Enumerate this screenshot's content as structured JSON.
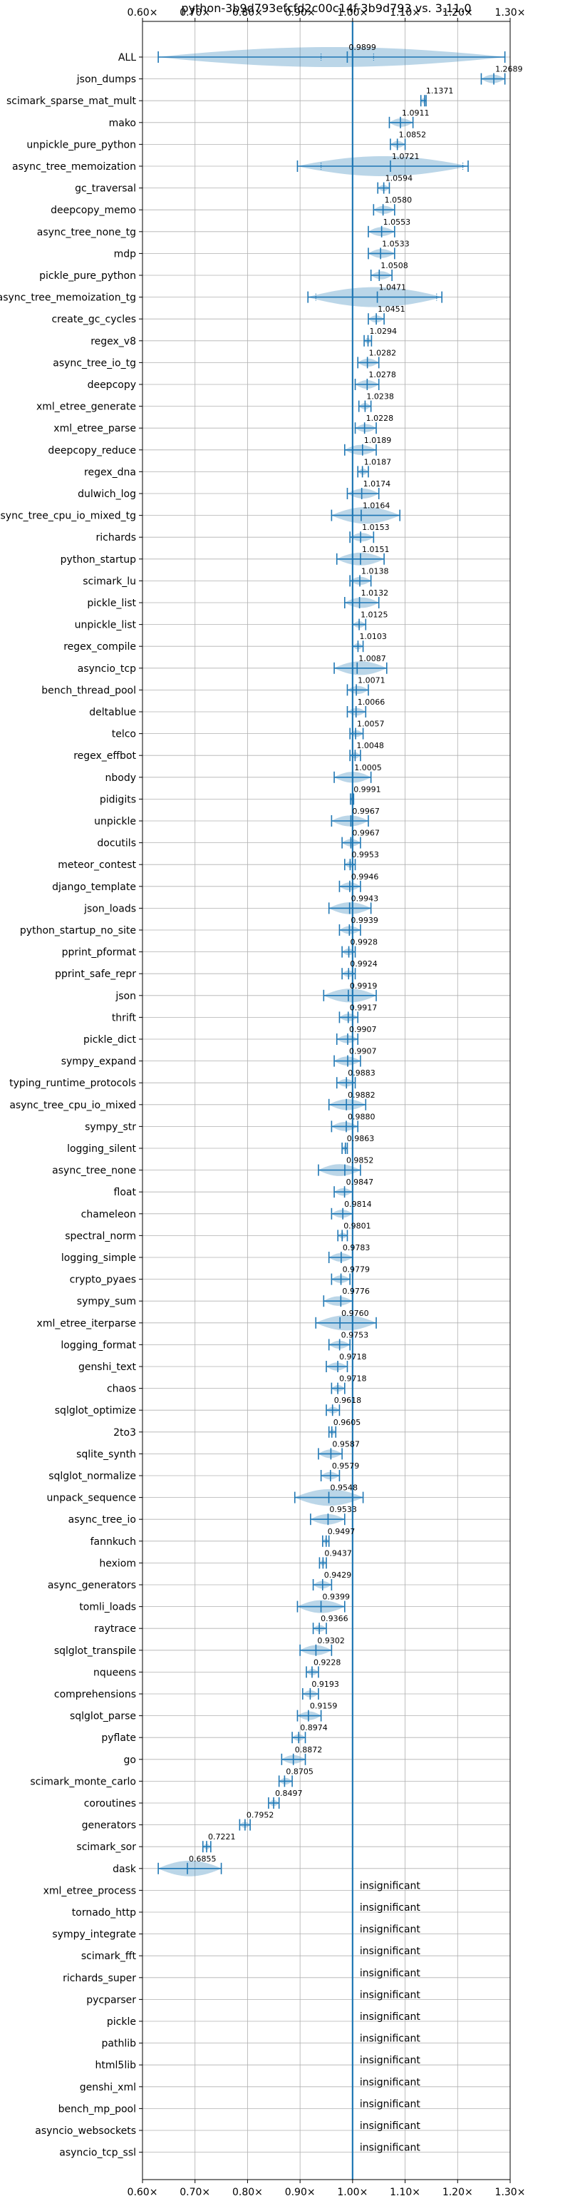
{
  "chart_data": {
    "type": "violin",
    "title": "python-3b9d793efcfd2c00c14f-3b9d793 vs. 3.11.0",
    "orientation": "horizontal",
    "xlabel": "",
    "ylabel": "",
    "xlim": [
      0.6,
      1.3
    ],
    "x_ticks": [
      0.6,
      0.7,
      0.8,
      0.9,
      1.0,
      1.1,
      1.2,
      1.3
    ],
    "x_tick_labels": [
      "0.60×",
      "0.70×",
      "0.80×",
      "0.90×",
      "1.00×",
      "1.10×",
      "1.20×",
      "1.30×"
    ],
    "x_ticks_top_and_bottom": true,
    "grid": true,
    "reference_line": 1.0,
    "insignificant_label": "insignificant",
    "benchmarks": [
      {
        "name": "ALL",
        "median": 0.9899,
        "label": "0.9899",
        "min": 0.63,
        "max": 1.29,
        "violin": [
          0.94,
          1.04
        ]
      },
      {
        "name": "json_dumps",
        "median": 1.2689,
        "label": "1.2689",
        "min": 1.245,
        "max": 1.29
      },
      {
        "name": "scimark_sparse_mat_mult",
        "median": 1.1371,
        "label": "1.1371",
        "min": 1.13,
        "max": 1.14
      },
      {
        "name": "mako",
        "median": 1.0911,
        "label": "1.0911",
        "min": 1.07,
        "max": 1.115
      },
      {
        "name": "unpickle_pure_python",
        "median": 1.0852,
        "label": "1.0852",
        "min": 1.072,
        "max": 1.1
      },
      {
        "name": "async_tree_memoization",
        "median": 1.0721,
        "label": "1.0721",
        "min": 0.895,
        "max": 1.22,
        "violin": [
          0.94,
          1.21
        ]
      },
      {
        "name": "gc_traversal",
        "median": 1.0594,
        "label": "1.0594",
        "min": 1.048,
        "max": 1.07
      },
      {
        "name": "deepcopy_memo",
        "median": 1.058,
        "label": "1.0580",
        "min": 1.04,
        "max": 1.08
      },
      {
        "name": "async_tree_none_tg",
        "median": 1.0553,
        "label": "1.0553",
        "min": 1.03,
        "max": 1.08
      },
      {
        "name": "mdp",
        "median": 1.0533,
        "label": "1.0533",
        "min": 1.03,
        "max": 1.08
      },
      {
        "name": "pickle_pure_python",
        "median": 1.0508,
        "label": "1.0508",
        "min": 1.035,
        "max": 1.075
      },
      {
        "name": "async_tree_memoization_tg",
        "median": 1.0471,
        "label": "1.0471",
        "min": 0.915,
        "max": 1.17,
        "violin": [
          0.93,
          1.16
        ]
      },
      {
        "name": "create_gc_cycles",
        "median": 1.0451,
        "label": "1.0451",
        "min": 1.03,
        "max": 1.06
      },
      {
        "name": "regex_v8",
        "median": 1.0294,
        "label": "1.0294",
        "min": 1.022,
        "max": 1.036
      },
      {
        "name": "async_tree_io_tg",
        "median": 1.0282,
        "label": "1.0282",
        "min": 1.01,
        "max": 1.05
      },
      {
        "name": "deepcopy",
        "median": 1.0278,
        "label": "1.0278",
        "min": 1.005,
        "max": 1.05
      },
      {
        "name": "xml_etree_generate",
        "median": 1.0238,
        "label": "1.0238",
        "min": 1.012,
        "max": 1.035
      },
      {
        "name": "xml_etree_parse",
        "median": 1.0228,
        "label": "1.0228",
        "min": 1.005,
        "max": 1.045
      },
      {
        "name": "deepcopy_reduce",
        "median": 1.0189,
        "label": "1.0189",
        "min": 0.985,
        "max": 1.045
      },
      {
        "name": "regex_dna",
        "median": 1.0187,
        "label": "1.0187",
        "min": 1.01,
        "max": 1.03
      },
      {
        "name": "dulwich_log",
        "median": 1.0174,
        "label": "1.0174",
        "min": 0.99,
        "max": 1.05
      },
      {
        "name": "async_tree_cpu_io_mixed_tg",
        "median": 1.0164,
        "label": "1.0164",
        "min": 0.96,
        "max": 1.09
      },
      {
        "name": "richards",
        "median": 1.0153,
        "label": "1.0153",
        "min": 0.995,
        "max": 1.04
      },
      {
        "name": "python_startup",
        "median": 1.0151,
        "label": "1.0151",
        "min": 0.97,
        "max": 1.06
      },
      {
        "name": "scimark_lu",
        "median": 1.0138,
        "label": "1.0138",
        "min": 0.995,
        "max": 1.035
      },
      {
        "name": "pickle_list",
        "median": 1.0132,
        "label": "1.0132",
        "min": 0.985,
        "max": 1.05
      },
      {
        "name": "unpickle_list",
        "median": 1.0125,
        "label": "1.0125",
        "min": 1.0,
        "max": 1.025
      },
      {
        "name": "regex_compile",
        "median": 1.0103,
        "label": "1.0103",
        "min": 1.0,
        "max": 1.02
      },
      {
        "name": "asyncio_tcp",
        "median": 1.0087,
        "label": "1.0087",
        "min": 0.965,
        "max": 1.065
      },
      {
        "name": "bench_thread_pool",
        "median": 1.0071,
        "label": "1.0071",
        "min": 0.99,
        "max": 1.03
      },
      {
        "name": "deltablue",
        "median": 1.0066,
        "label": "1.0066",
        "min": 0.99,
        "max": 1.025
      },
      {
        "name": "telco",
        "median": 1.0057,
        "label": "1.0057",
        "min": 0.995,
        "max": 1.02
      },
      {
        "name": "regex_effbot",
        "median": 1.0048,
        "label": "1.0048",
        "min": 0.995,
        "max": 1.015
      },
      {
        "name": "nbody",
        "median": 1.0005,
        "label": "1.0005",
        "min": 0.965,
        "max": 1.035
      },
      {
        "name": "pidigits",
        "median": 0.9991,
        "label": "0.9991",
        "min": 0.996,
        "max": 1.002
      },
      {
        "name": "unpickle",
        "median": 0.9967,
        "label": "0.9967",
        "min": 0.96,
        "max": 1.03
      },
      {
        "name": "docutils",
        "median": 0.9967,
        "label": "0.9967",
        "min": 0.98,
        "max": 1.015
      },
      {
        "name": "meteor_contest",
        "median": 0.9953,
        "label": "0.9953",
        "min": 0.985,
        "max": 1.005
      },
      {
        "name": "django_template",
        "median": 0.9946,
        "label": "0.9946",
        "min": 0.975,
        "max": 1.015
      },
      {
        "name": "json_loads",
        "median": 0.9943,
        "label": "0.9943",
        "min": 0.955,
        "max": 1.035
      },
      {
        "name": "python_startup_no_site",
        "median": 0.9939,
        "label": "0.9939",
        "min": 0.975,
        "max": 1.015
      },
      {
        "name": "pprint_pformat",
        "median": 0.9928,
        "label": "0.9928",
        "min": 0.98,
        "max": 1.005
      },
      {
        "name": "pprint_safe_repr",
        "median": 0.9924,
        "label": "0.9924",
        "min": 0.98,
        "max": 1.005
      },
      {
        "name": "json",
        "median": 0.9919,
        "label": "0.9919",
        "min": 0.945,
        "max": 1.045
      },
      {
        "name": "thrift",
        "median": 0.9917,
        "label": "0.9917",
        "min": 0.975,
        "max": 1.01
      },
      {
        "name": "pickle_dict",
        "median": 0.9907,
        "label": "0.9907",
        "min": 0.97,
        "max": 1.01
      },
      {
        "name": "sympy_expand",
        "median": 0.9907,
        "label": "0.9907",
        "min": 0.965,
        "max": 1.015
      },
      {
        "name": "typing_runtime_protocols",
        "median": 0.9883,
        "label": "0.9883",
        "min": 0.97,
        "max": 1.005
      },
      {
        "name": "async_tree_cpu_io_mixed",
        "median": 0.9882,
        "label": "0.9882",
        "min": 0.955,
        "max": 1.025
      },
      {
        "name": "sympy_str",
        "median": 0.988,
        "label": "0.9880",
        "min": 0.96,
        "max": 1.01
      },
      {
        "name": "logging_silent",
        "median": 0.9863,
        "label": "0.9863",
        "min": 0.98,
        "max": 0.99
      },
      {
        "name": "async_tree_none",
        "median": 0.9852,
        "label": "0.9852",
        "min": 0.935,
        "max": 1.015
      },
      {
        "name": "float",
        "median": 0.9847,
        "label": "0.9847",
        "min": 0.965,
        "max": 1.0
      },
      {
        "name": "chameleon",
        "median": 0.9814,
        "label": "0.9814",
        "min": 0.96,
        "max": 1.0
      },
      {
        "name": "spectral_norm",
        "median": 0.9801,
        "label": "0.9801",
        "min": 0.972,
        "max": 0.99
      },
      {
        "name": "logging_simple",
        "median": 0.9783,
        "label": "0.9783",
        "min": 0.955,
        "max": 1.0
      },
      {
        "name": "crypto_pyaes",
        "median": 0.9779,
        "label": "0.9779",
        "min": 0.96,
        "max": 0.995
      },
      {
        "name": "sympy_sum",
        "median": 0.9776,
        "label": "0.9776",
        "min": 0.945,
        "max": 1.0
      },
      {
        "name": "xml_etree_iterparse",
        "median": 0.976,
        "label": "0.9760",
        "min": 0.93,
        "max": 1.045
      },
      {
        "name": "logging_format",
        "median": 0.9753,
        "label": "0.9753",
        "min": 0.955,
        "max": 0.995
      },
      {
        "name": "genshi_text",
        "median": 0.9718,
        "label": "0.9718",
        "min": 0.95,
        "max": 0.99
      },
      {
        "name": "chaos",
        "median": 0.9718,
        "label": "0.9718",
        "min": 0.96,
        "max": 0.985
      },
      {
        "name": "sqlglot_optimize",
        "median": 0.9618,
        "label": "0.9618",
        "min": 0.95,
        "max": 0.975
      },
      {
        "name": "2to3",
        "median": 0.9605,
        "label": "0.9605",
        "min": 0.955,
        "max": 0.968
      },
      {
        "name": "sqlite_synth",
        "median": 0.9587,
        "label": "0.9587",
        "min": 0.935,
        "max": 0.98
      },
      {
        "name": "sqlglot_normalize",
        "median": 0.9579,
        "label": "0.9579",
        "min": 0.94,
        "max": 0.975
      },
      {
        "name": "unpack_sequence",
        "median": 0.9548,
        "label": "0.9548",
        "min": 0.89,
        "max": 1.02
      },
      {
        "name": "async_tree_io",
        "median": 0.9533,
        "label": "0.9533",
        "min": 0.92,
        "max": 0.985
      },
      {
        "name": "fannkuch",
        "median": 0.9497,
        "label": "0.9497",
        "min": 0.943,
        "max": 0.955
      },
      {
        "name": "hexiom",
        "median": 0.9437,
        "label": "0.9437",
        "min": 0.937,
        "max": 0.95
      },
      {
        "name": "async_generators",
        "median": 0.9429,
        "label": "0.9429",
        "min": 0.925,
        "max": 0.96
      },
      {
        "name": "tomli_loads",
        "median": 0.9399,
        "label": "0.9399",
        "min": 0.895,
        "max": 0.985
      },
      {
        "name": "raytrace",
        "median": 0.9366,
        "label": "0.9366",
        "min": 0.925,
        "max": 0.95
      },
      {
        "name": "sqlglot_transpile",
        "median": 0.9302,
        "label": "0.9302",
        "min": 0.9,
        "max": 0.96
      },
      {
        "name": "nqueens",
        "median": 0.9228,
        "label": "0.9228",
        "min": 0.912,
        "max": 0.935
      },
      {
        "name": "comprehensions",
        "median": 0.9193,
        "label": "0.9193",
        "min": 0.905,
        "max": 0.935
      },
      {
        "name": "sqlglot_parse",
        "median": 0.9159,
        "label": "0.9159",
        "min": 0.895,
        "max": 0.94
      },
      {
        "name": "pyflate",
        "median": 0.8974,
        "label": "0.8974",
        "min": 0.885,
        "max": 0.91
      },
      {
        "name": "go",
        "median": 0.8872,
        "label": "0.8872",
        "min": 0.865,
        "max": 0.91
      },
      {
        "name": "scimark_monte_carlo",
        "median": 0.8705,
        "label": "0.8705",
        "min": 0.86,
        "max": 0.885
      },
      {
        "name": "coroutines",
        "median": 0.8497,
        "label": "0.8497",
        "min": 0.84,
        "max": 0.86
      },
      {
        "name": "generators",
        "median": 0.7952,
        "label": "0.7952",
        "min": 0.785,
        "max": 0.805
      },
      {
        "name": "scimark_sor",
        "median": 0.7221,
        "label": "0.7221",
        "min": 0.715,
        "max": 0.73
      },
      {
        "name": "dask",
        "median": 0.6855,
        "label": "0.6855",
        "min": 0.63,
        "max": 0.75
      },
      {
        "name": "xml_etree_process",
        "insignificant": true
      },
      {
        "name": "tornado_http",
        "insignificant": true
      },
      {
        "name": "sympy_integrate",
        "insignificant": true
      },
      {
        "name": "scimark_fft",
        "insignificant": true
      },
      {
        "name": "richards_super",
        "insignificant": true
      },
      {
        "name": "pycparser",
        "insignificant": true
      },
      {
        "name": "pickle",
        "insignificant": true
      },
      {
        "name": "pathlib",
        "insignificant": true
      },
      {
        "name": "html5lib",
        "insignificant": true
      },
      {
        "name": "genshi_xml",
        "insignificant": true
      },
      {
        "name": "bench_mp_pool",
        "insignificant": true
      },
      {
        "name": "asyncio_websockets",
        "insignificant": true
      },
      {
        "name": "asyncio_tcp_ssl",
        "insignificant": true
      }
    ]
  },
  "colors": {
    "series": "#1f77b4",
    "grid": "#b0b0b0",
    "frame": "#000000"
  }
}
